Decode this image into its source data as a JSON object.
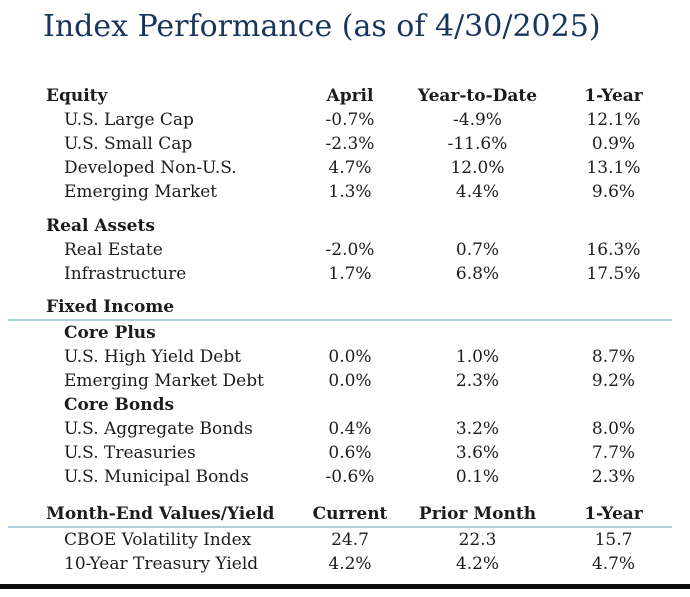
{
  "title": "Index Performance (as of 4/30/2025)",
  "colors": {
    "title": "#17365d",
    "text": "#1c1c1c",
    "divider_blue": "#aed0dd",
    "divider_bottom": "#0d0d0d"
  },
  "performance_table": {
    "header": {
      "section": "Equity",
      "columns": [
        "April",
        "Year-to-Date",
        "1-Year"
      ]
    },
    "equity_rows": [
      {
        "label": "U.S. Large Cap",
        "april": "-0.7%",
        "ytd": "-4.9%",
        "year1": "12.1%"
      },
      {
        "label": "U.S. Small Cap",
        "april": "-2.3%",
        "ytd": "-11.6%",
        "year1": "0.9%"
      },
      {
        "label": "Developed Non-U.S.",
        "april": "4.7%",
        "ytd": "12.0%",
        "year1": "13.1%"
      },
      {
        "label": "Emerging Market",
        "april": "1.3%",
        "ytd": "4.4%",
        "year1": "9.6%"
      }
    ],
    "real_assets": {
      "label": "Real Assets",
      "rows": [
        {
          "label": "Real Estate",
          "april": "-2.0%",
          "ytd": "0.7%",
          "year1": "16.3%"
        },
        {
          "label": "Infrastructure",
          "april": "1.7%",
          "ytd": "6.8%",
          "year1": "17.5%"
        }
      ]
    },
    "fixed_income": {
      "label": "Fixed Income",
      "core_plus": {
        "label": "Core Plus",
        "rows": [
          {
            "label": "U.S. High Yield Debt",
            "april": "0.0%",
            "ytd": "1.0%",
            "year1": "8.7%"
          },
          {
            "label": "Emerging Market Debt",
            "april": "0.0%",
            "ytd": "2.3%",
            "year1": "9.2%"
          }
        ]
      },
      "core_bonds": {
        "label": "Core Bonds",
        "rows": [
          {
            "label": "U.S. Aggregate Bonds",
            "april": "0.4%",
            "ytd": "3.2%",
            "year1": "8.0%"
          },
          {
            "label": "U.S. Treasuries",
            "april": "0.6%",
            "ytd": "3.6%",
            "year1": "7.7%"
          },
          {
            "label": "U.S. Municipal Bonds",
            "april": "-0.6%",
            "ytd": "0.1%",
            "year1": "2.3%"
          }
        ]
      }
    },
    "month_end": {
      "header": {
        "section": "Month-End Values/Yield",
        "columns": [
          "Current",
          "Prior Month",
          "1-Year"
        ]
      },
      "rows": [
        {
          "label": "CBOE Volatility Index",
          "current": "24.7",
          "prior": "22.3",
          "year1": "15.7"
        },
        {
          "label": "10-Year Treasury Yield",
          "current": "4.2%",
          "prior": "4.2%",
          "year1": "4.7%"
        }
      ]
    }
  }
}
